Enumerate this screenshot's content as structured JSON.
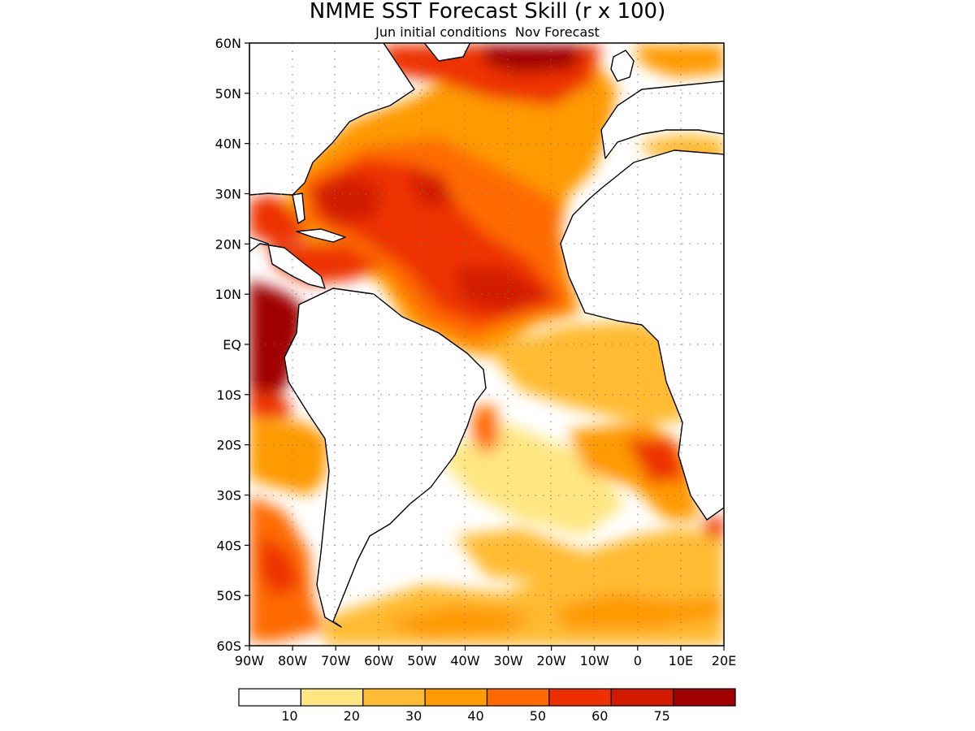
{
  "title": "NMME SST Forecast Skill (r x 100)",
  "subtitle": "Jun initial conditions  Nov Forecast",
  "map": {
    "lon_range": [
      -90,
      20
    ],
    "lat_range": [
      -60,
      60
    ],
    "grid": "dotted",
    "lat_labels": [
      "60N",
      "50N",
      "40N",
      "30N",
      "20N",
      "10N",
      "EQ",
      "10S",
      "20S",
      "30S",
      "40S",
      "50S",
      "60S"
    ],
    "lon_labels": [
      "90W",
      "80W",
      "70W",
      "60W",
      "50W",
      "40W",
      "30W",
      "20W",
      "10W",
      "0",
      "10E",
      "20E"
    ]
  },
  "colorbar": {
    "colors": [
      "#ffffff",
      "#ffe680",
      "#ffbb33",
      "#ff9a00",
      "#ff6a00",
      "#ee3000",
      "#d21a00",
      "#a00000"
    ],
    "labels": [
      "10",
      "20",
      "30",
      "40",
      "50",
      "60",
      "75"
    ]
  }
}
